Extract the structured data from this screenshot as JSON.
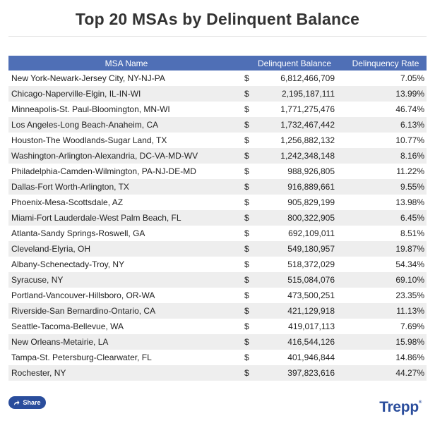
{
  "title": "Top 20 MSAs by Delinquent Balance",
  "chart_data": {
    "type": "table",
    "title": "Top 20 MSAs by Delinquent Balance",
    "columns": [
      "MSA Name",
      "Delinquent Balance",
      "Delinquency Rate"
    ],
    "rows": [
      {
        "name": "New York-Newark-Jersey City, NY-NJ-PA",
        "currency": "$",
        "balance": "6,812,466,709",
        "rate": "7.05%"
      },
      {
        "name": "Chicago-Naperville-Elgin, IL-IN-WI",
        "currency": "$",
        "balance": "2,195,187,111",
        "rate": "13.99%"
      },
      {
        "name": "Minneapolis-St. Paul-Bloomington, MN-WI",
        "currency": "$",
        "balance": "1,771,275,476",
        "rate": "46.74%"
      },
      {
        "name": "Los Angeles-Long Beach-Anaheim, CA",
        "currency": "$",
        "balance": "1,732,467,442",
        "rate": "6.13%"
      },
      {
        "name": "Houston-The Woodlands-Sugar Land, TX",
        "currency": "$",
        "balance": "1,256,882,132",
        "rate": "10.77%"
      },
      {
        "name": "Washington-Arlington-Alexandria, DC-VA-MD-WV",
        "currency": "$",
        "balance": "1,242,348,148",
        "rate": "8.16%"
      },
      {
        "name": "Philadelphia-Camden-Wilmington, PA-NJ-DE-MD",
        "currency": "$",
        "balance": "988,926,805",
        "rate": "11.22%"
      },
      {
        "name": "Dallas-Fort Worth-Arlington, TX",
        "currency": "$",
        "balance": "916,889,661",
        "rate": "9.55%"
      },
      {
        "name": "Phoenix-Mesa-Scottsdale, AZ",
        "currency": "$",
        "balance": "905,829,199",
        "rate": "13.98%"
      },
      {
        "name": "Miami-Fort Lauderdale-West Palm Beach, FL",
        "currency": "$",
        "balance": "800,322,905",
        "rate": "6.45%"
      },
      {
        "name": "Atlanta-Sandy Springs-Roswell, GA",
        "currency": "$",
        "balance": "692,109,011",
        "rate": "8.51%"
      },
      {
        "name": "Cleveland-Elyria, OH",
        "currency": "$",
        "balance": "549,180,957",
        "rate": "19.87%"
      },
      {
        "name": "Albany-Schenectady-Troy, NY",
        "currency": "$",
        "balance": "518,372,029",
        "rate": "54.34%"
      },
      {
        "name": "Syracuse, NY",
        "currency": "$",
        "balance": "515,084,076",
        "rate": "69.10%"
      },
      {
        "name": "Portland-Vancouver-Hillsboro, OR-WA",
        "currency": "$",
        "balance": "473,500,251",
        "rate": "23.35%"
      },
      {
        "name": "Riverside-San Bernardino-Ontario, CA",
        "currency": "$",
        "balance": "421,129,918",
        "rate": "11.13%"
      },
      {
        "name": "Seattle-Tacoma-Bellevue, WA",
        "currency": "$",
        "balance": "419,017,113",
        "rate": "7.69%"
      },
      {
        "name": "New Orleans-Metairie, LA",
        "currency": "$",
        "balance": "416,544,126",
        "rate": "15.98%"
      },
      {
        "name": "Tampa-St. Petersburg-Clearwater, FL",
        "currency": "$",
        "balance": "401,946,844",
        "rate": "14.86%"
      },
      {
        "name": "Rochester, NY",
        "currency": "$",
        "balance": "397,823,616",
        "rate": "44.27%"
      }
    ]
  },
  "share": {
    "label": "Share",
    "icon": "share-icon"
  },
  "brand": {
    "name": "Trepp",
    "mark": "®"
  },
  "colors": {
    "header_bg": "#4f6fb6",
    "header_text": "#ffffff",
    "row_alt": "#eeeeee",
    "brand": "#2a4d9c",
    "title": "#333333"
  }
}
